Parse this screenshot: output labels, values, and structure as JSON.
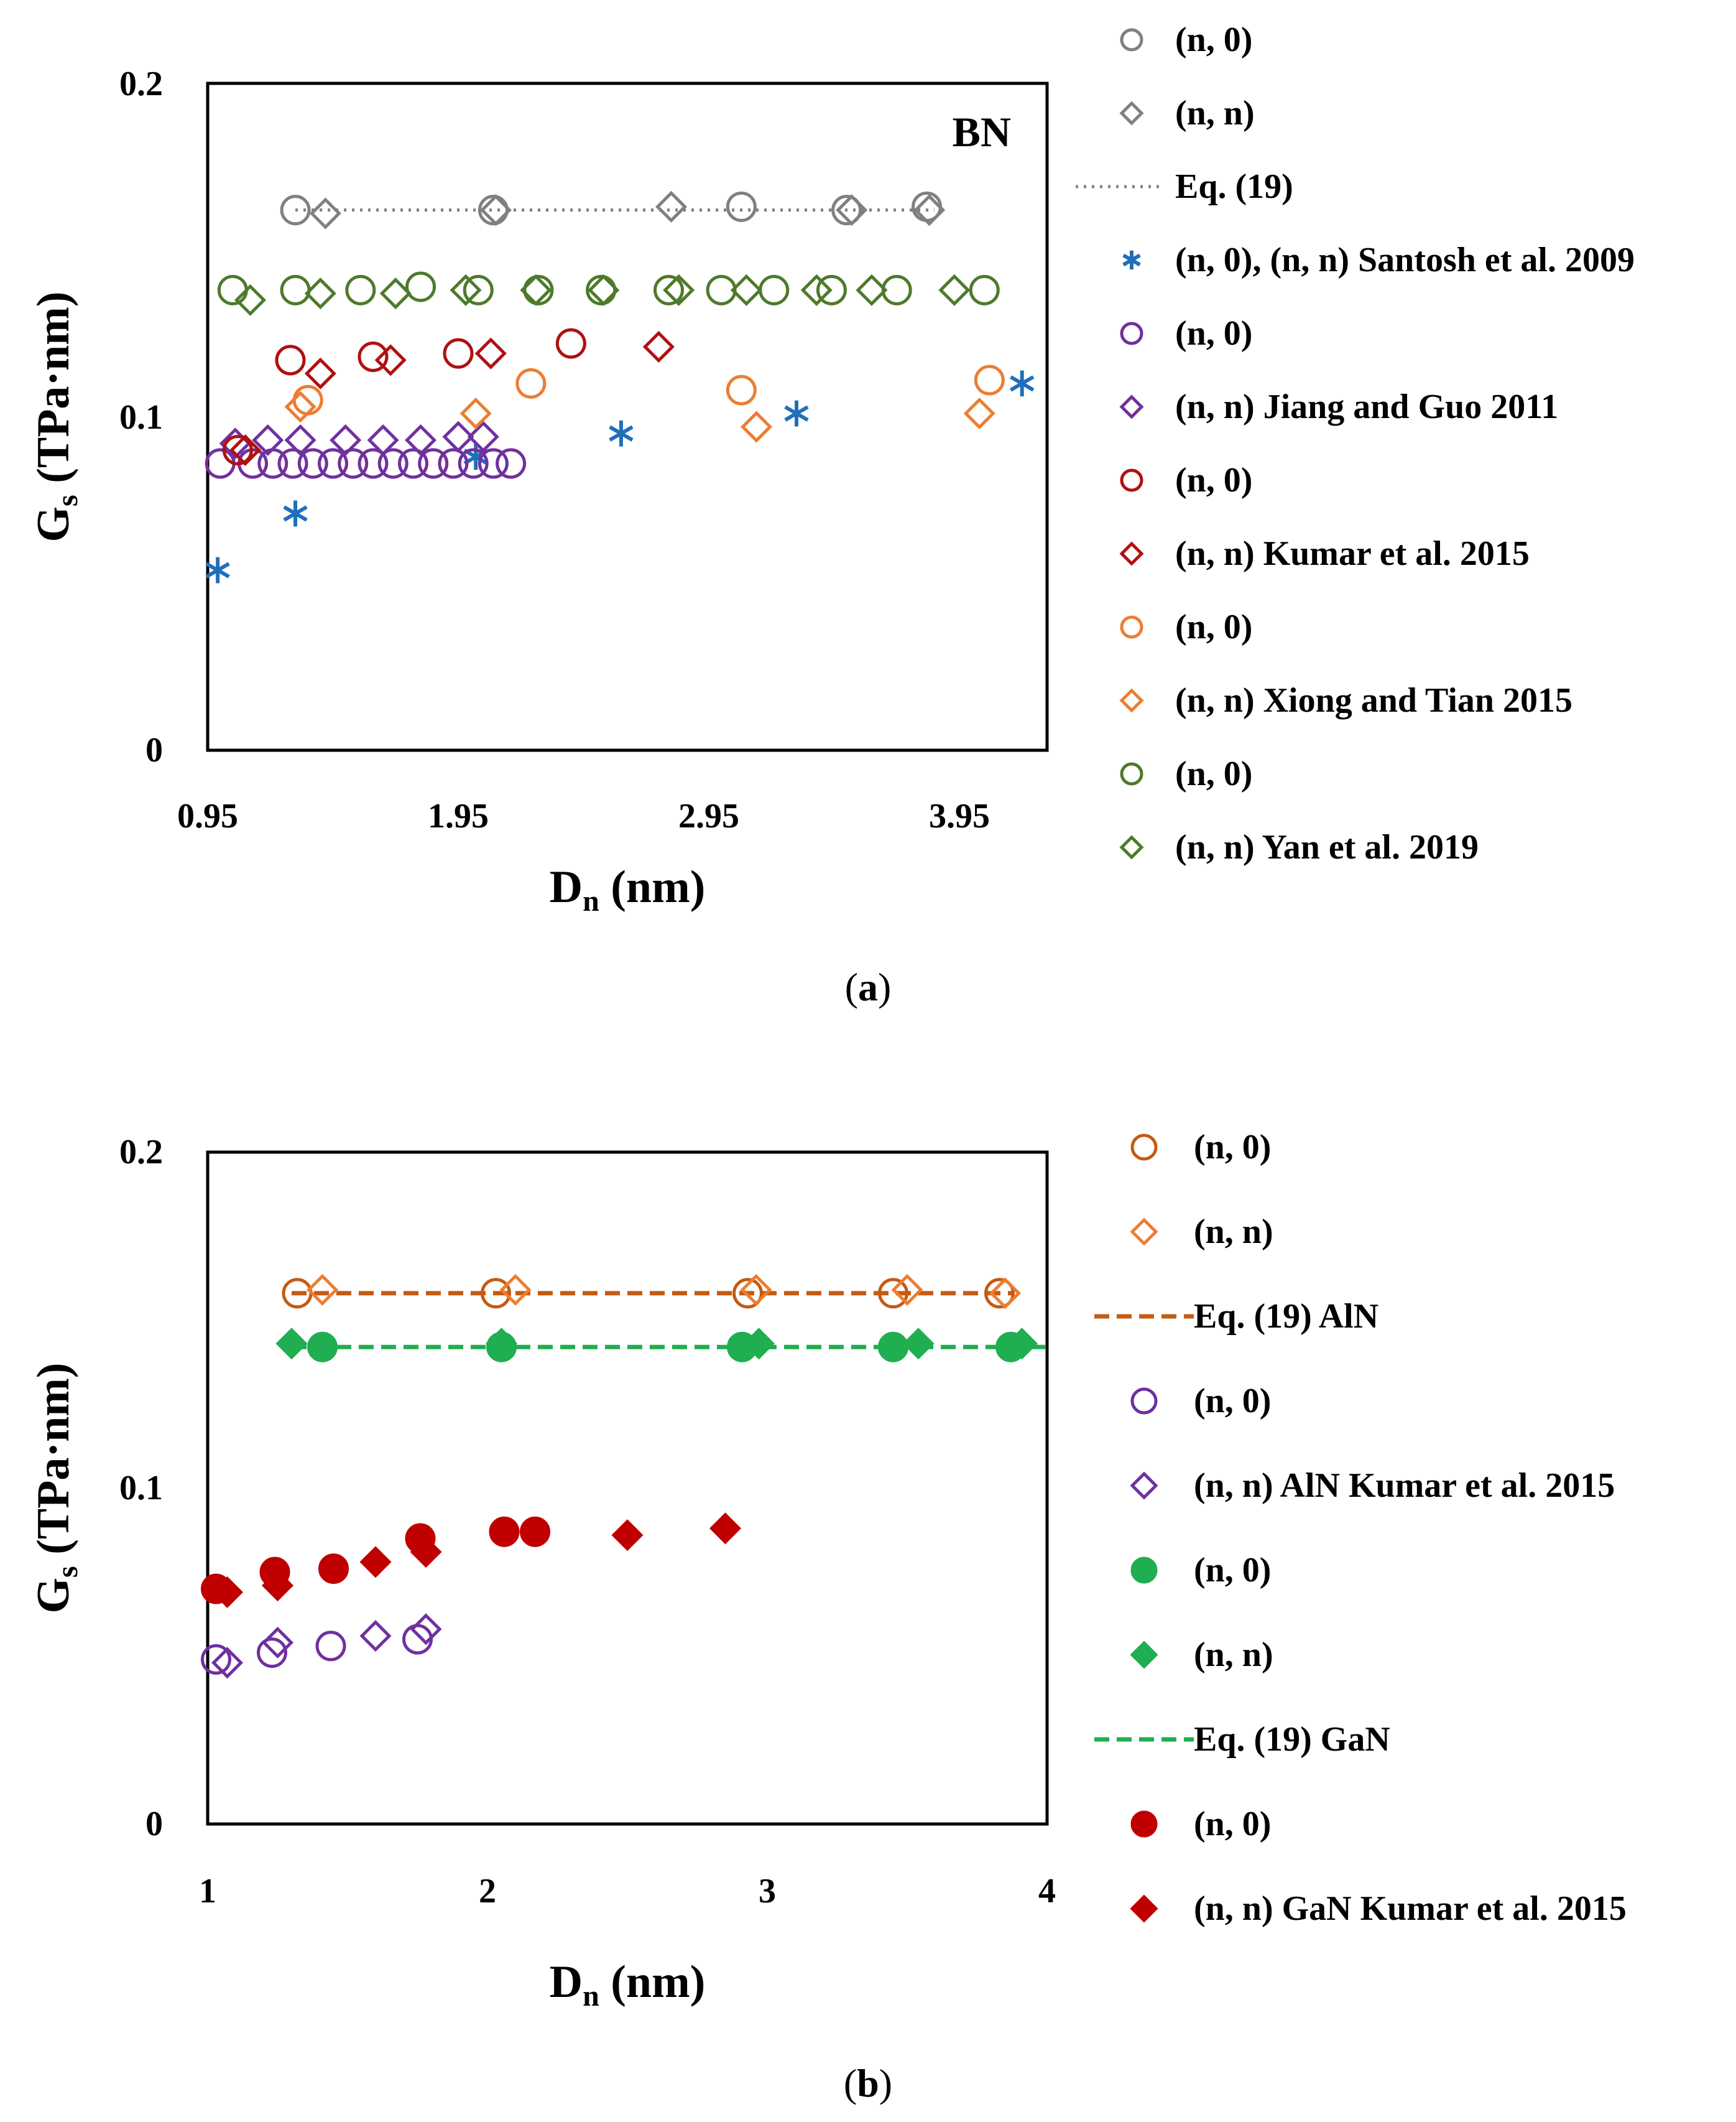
{
  "colors": {
    "grey": "#808080",
    "blue": "#1f6fba",
    "purple": "#7030a0",
    "darkred": "#b01010",
    "orange": "#ed7d31",
    "green": "#4e7a2b",
    "aln": "#c55a11",
    "gan_green": "#1fae50",
    "gan_red": "#c00000"
  },
  "chart_data": [
    {
      "id": "a",
      "type": "scatter",
      "caption_letter": "a",
      "annotation": "BN",
      "xlabel": "D",
      "xlabel_sub": "n",
      "xlabel_unit": " (nm)",
      "ylabel": "G",
      "ylabel_sub": "s",
      "ylabel_unit": " (TPa·nm)",
      "xlim": [
        0.95,
        4.3
      ],
      "ylim": [
        0,
        0.2
      ],
      "xticks": [
        0.95,
        1.95,
        2.95,
        3.95
      ],
      "xtick_labels": [
        "0.95",
        "1.95",
        "2.95",
        "3.95"
      ],
      "yticks": [
        0,
        0.1,
        0.2
      ],
      "ytick_labels": [
        "0",
        "0.1",
        "0.2"
      ],
      "series": [
        {
          "key": "a_grey_c",
          "legend": "(n, 0)",
          "color": "#808080",
          "marker": "circle",
          "filled": false,
          "x": [
            1.3,
            2.09,
            3.08,
            3.5,
            3.82
          ],
          "y": [
            0.162,
            0.162,
            0.163,
            0.162,
            0.163
          ]
        },
        {
          "key": "a_grey_d",
          "legend": "(n, n)",
          "color": "#808080",
          "marker": "diamond",
          "filled": false,
          "x": [
            1.42,
            2.1,
            2.8,
            3.52,
            3.83
          ],
          "y": [
            0.161,
            0.162,
            0.163,
            0.162,
            0.162
          ]
        },
        {
          "key": "a_eq",
          "legend": "Eq. (19)",
          "color": "#808080",
          "marker": "dotted-line",
          "filled": false,
          "x": [
            1.3,
            3.85
          ],
          "y": [
            0.162,
            0.162
          ]
        },
        {
          "key": "a_santosh",
          "legend": "(n, 0), (n, n) Santosh et al. 2009",
          "color": "#1f6fba",
          "marker": "star",
          "filled": false,
          "x": [
            0.99,
            1.3,
            2.02,
            2.6,
            3.3,
            4.2
          ],
          "y": [
            0.054,
            0.071,
            0.088,
            0.095,
            0.101,
            0.11
          ]
        },
        {
          "key": "a_jiang_c",
          "legend": "(n, 0)",
          "color": "#7030a0",
          "marker": "circle",
          "filled": false,
          "x": [
            1.0,
            1.13,
            1.21,
            1.29,
            1.37,
            1.45,
            1.53,
            1.61,
            1.69,
            1.77,
            1.85,
            1.93,
            2.01,
            2.09,
            2.16
          ],
          "y": [
            0.086,
            0.086,
            0.086,
            0.086,
            0.086,
            0.086,
            0.086,
            0.086,
            0.086,
            0.086,
            0.086,
            0.086,
            0.086,
            0.086,
            0.086
          ]
        },
        {
          "key": "a_jiang_d",
          "legend": "(n, n) Jiang and Guo 2011",
          "color": "#7030a0",
          "marker": "diamond",
          "filled": false,
          "x": [
            1.06,
            1.19,
            1.32,
            1.5,
            1.65,
            1.8,
            1.95,
            2.05
          ],
          "y": [
            0.092,
            0.093,
            0.093,
            0.093,
            0.093,
            0.093,
            0.094,
            0.094
          ]
        },
        {
          "key": "a_kumar_c",
          "legend": "(n, 0)",
          "color": "#b01010",
          "marker": "circle",
          "filled": false,
          "x": [
            1.07,
            1.28,
            1.61,
            1.95,
            2.4
          ],
          "y": [
            0.09,
            0.117,
            0.118,
            0.119,
            0.122
          ]
        },
        {
          "key": "a_kumar_d",
          "legend": "(n, n) Kumar et al. 2015",
          "color": "#b01010",
          "marker": "diamond",
          "filled": false,
          "x": [
            1.1,
            1.4,
            1.68,
            2.08,
            2.75
          ],
          "y": [
            0.09,
            0.113,
            0.117,
            0.119,
            0.121
          ]
        },
        {
          "key": "a_xiong_c",
          "legend": "(n, 0)",
          "color": "#ed7d31",
          "marker": "circle",
          "filled": false,
          "x": [
            1.35,
            2.24,
            3.08,
            4.07
          ],
          "y": [
            0.105,
            0.11,
            0.108,
            0.111
          ]
        },
        {
          "key": "a_xiong_d",
          "legend": "(n, n) Xiong and Tian 2015",
          "color": "#ed7d31",
          "marker": "diamond",
          "filled": false,
          "x": [
            1.32,
            2.02,
            3.14,
            4.03
          ],
          "y": [
            0.103,
            0.101,
            0.097,
            0.101
          ]
        },
        {
          "key": "a_yan_c",
          "legend": "(n, 0)",
          "color": "#4e7a2b",
          "marker": "circle",
          "filled": false,
          "x": [
            1.05,
            1.3,
            1.56,
            1.8,
            2.03,
            2.27,
            2.52,
            2.79,
            3.0,
            3.21,
            3.44,
            3.7,
            4.05
          ],
          "y": [
            0.138,
            0.138,
            0.138,
            0.139,
            0.138,
            0.138,
            0.138,
            0.138,
            0.138,
            0.138,
            0.138,
            0.138,
            0.138
          ]
        },
        {
          "key": "a_yan_d",
          "legend": "(n, n) Yan et al. 2019",
          "color": "#4e7a2b",
          "marker": "diamond",
          "filled": false,
          "x": [
            1.12,
            1.4,
            1.7,
            1.98,
            2.26,
            2.53,
            2.83,
            3.1,
            3.38,
            3.6,
            3.93
          ],
          "y": [
            0.135,
            0.137,
            0.137,
            0.138,
            0.138,
            0.138,
            0.138,
            0.138,
            0.138,
            0.138,
            0.138
          ]
        }
      ]
    },
    {
      "id": "b",
      "type": "scatter",
      "caption_letter": "b",
      "xlabel": "D",
      "xlabel_sub": "n",
      "xlabel_unit": " (nm)",
      "ylabel": "G",
      "ylabel_sub": "s",
      "ylabel_unit": " (TPa·nm)",
      "xlim": [
        1,
        4
      ],
      "ylim": [
        0,
        0.2
      ],
      "xticks": [
        1,
        2,
        3,
        4
      ],
      "xtick_labels": [
        "1",
        "2",
        "3",
        "4"
      ],
      "yticks": [
        0,
        0.1,
        0.2
      ],
      "ytick_labels": [
        "0",
        "0.1",
        "0.2"
      ],
      "series": [
        {
          "key": "b_aln_c",
          "legend": "(n, 0)",
          "color": "#c55a11",
          "marker": "circle",
          "filled": false,
          "x": [
            1.32,
            2.03,
            2.93,
            3.45,
            3.83
          ],
          "y": [
            0.158,
            0.158,
            0.158,
            0.158,
            0.158
          ]
        },
        {
          "key": "b_aln_d",
          "legend": "(n, n)",
          "color": "#ed7d31",
          "marker": "diamond",
          "filled": false,
          "x": [
            1.41,
            2.1,
            2.96,
            3.5,
            3.85
          ],
          "y": [
            0.159,
            0.159,
            0.159,
            0.159,
            0.158
          ]
        },
        {
          "key": "b_eq_aln",
          "legend": "Eq. (19) AlN",
          "color": "#c55a11",
          "marker": "dashed-line",
          "filled": false,
          "x": [
            1.3,
            3.88
          ],
          "y": [
            0.158,
            0.158
          ]
        },
        {
          "key": "b_alnk_c",
          "legend": "(n, 0)",
          "color": "#7030a0",
          "marker": "circle",
          "filled": false,
          "x": [
            1.03,
            1.23,
            1.44,
            1.75
          ],
          "y": [
            0.049,
            0.051,
            0.053,
            0.055
          ]
        },
        {
          "key": "b_alnk_d",
          "legend": "(n, n) AlN Kumar et al. 2015",
          "color": "#7030a0",
          "marker": "diamond",
          "filled": false,
          "x": [
            1.07,
            1.25,
            1.6,
            1.78
          ],
          "y": [
            0.048,
            0.054,
            0.056,
            0.058
          ]
        },
        {
          "key": "b_gan_c",
          "legend": "(n, 0)",
          "color": "#1fae50",
          "marker": "circle",
          "filled": true,
          "x": [
            1.41,
            2.05,
            2.91,
            3.45,
            3.87
          ],
          "y": [
            0.142,
            0.142,
            0.142,
            0.142,
            0.142
          ]
        },
        {
          "key": "b_gan_d",
          "legend": "(n, n)",
          "color": "#1fae50",
          "marker": "diamond",
          "filled": true,
          "x": [
            1.3,
            2.05,
            2.97,
            3.54,
            3.91
          ],
          "y": [
            0.143,
            0.143,
            0.143,
            0.143,
            0.143
          ]
        },
        {
          "key": "b_eq_gan",
          "legend": "Eq. (19) GaN",
          "color": "#1fae50",
          "marker": "dashed-line",
          "filled": false,
          "x": [
            1.3,
            4.0
          ],
          "y": [
            0.142,
            0.142
          ]
        },
        {
          "key": "b_gank_c",
          "legend": "(n, 0)",
          "color": "#c00000",
          "marker": "circle",
          "filled": true,
          "x": [
            1.03,
            1.24,
            1.45,
            1.76,
            2.06,
            2.17
          ],
          "y": [
            0.07,
            0.075,
            0.076,
            0.085,
            0.087,
            0.087
          ]
        },
        {
          "key": "b_gank_d",
          "legend": "(n, n) GaN Kumar et al. 2015",
          "color": "#c00000",
          "marker": "diamond",
          "filled": true,
          "x": [
            1.07,
            1.25,
            1.6,
            1.78,
            2.5,
            2.85
          ],
          "y": [
            0.069,
            0.071,
            0.078,
            0.081,
            0.086,
            0.088
          ]
        }
      ]
    }
  ]
}
